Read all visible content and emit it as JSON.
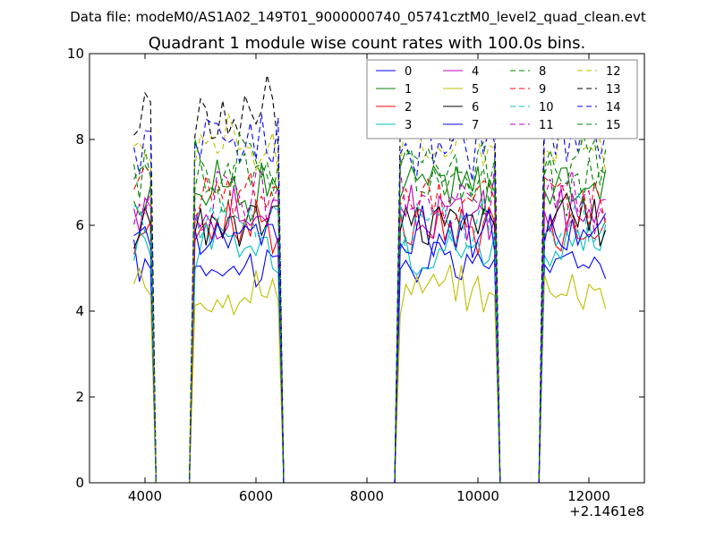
{
  "chart_data": {
    "type": "line",
    "suptitle": "Data file: modeM0/AS1A02_149T01_9000000740_05741cztM0_level2_quad_clean.evt",
    "title": "Quadrant 1 module wise count rates with 100.0s bins.",
    "xlabel": "",
    "ylabel": "",
    "x_offset_label": "+2.1461e8",
    "xlim": [
      3000,
      13000
    ],
    "ylim": [
      0,
      10
    ],
    "x_ticks": [
      4000,
      6000,
      8000,
      10000,
      12000
    ],
    "y_ticks": [
      0,
      2,
      4,
      6,
      8,
      10
    ],
    "x_tick_labels": [
      "4000",
      "6000",
      "8000",
      "10000",
      "12000"
    ],
    "y_tick_labels": [
      "0",
      "2",
      "4",
      "6",
      "8",
      "10"
    ],
    "grid": false,
    "legend_position": "top-right",
    "legend_columns": 4,
    "bin_width": 100,
    "x_start": 3800,
    "x_end": 12300,
    "segments": [
      {
        "start": 3800,
        "end": 4100
      },
      {
        "start": 4900,
        "end": 6400
      },
      {
        "start": 8600,
        "end": 10300
      },
      {
        "start": 11200,
        "end": 12300
      }
    ],
    "series": [
      {
        "name": "0",
        "color": "#0000ff",
        "dashed": false,
        "mean_level": 5.1
      },
      {
        "name": "1",
        "color": "#008000",
        "dashed": false,
        "mean_level": 6.9
      },
      {
        "name": "2",
        "color": "#ff0000",
        "dashed": false,
        "mean_level": 6.0
      },
      {
        "name": "3",
        "color": "#00bfbf",
        "dashed": false,
        "mean_level": 5.5
      },
      {
        "name": "4",
        "color": "#bf00bf",
        "dashed": false,
        "mean_level": 6.2
      },
      {
        "name": "5",
        "color": "#bfbf00",
        "dashed": false,
        "mean_level": 4.5
      },
      {
        "name": "6",
        "color": "#000000",
        "dashed": false,
        "mean_level": 6.1
      },
      {
        "name": "7",
        "color": "#0000ff",
        "dashed": false,
        "mean_level": 5.8
      },
      {
        "name": "8",
        "color": "#008000",
        "dashed": true,
        "mean_level": 7.0
      },
      {
        "name": "9",
        "color": "#ff0000",
        "dashed": true,
        "mean_level": 6.7
      },
      {
        "name": "10",
        "color": "#00bfbf",
        "dashed": true,
        "mean_level": 6.0
      },
      {
        "name": "11",
        "color": "#bf00bf",
        "dashed": true,
        "mean_level": 6.6
      },
      {
        "name": "12",
        "color": "#bfbf00",
        "dashed": true,
        "mean_level": 8.0
      },
      {
        "name": "13",
        "color": "#000000",
        "dashed": true,
        "mean_level": 8.6
      },
      {
        "name": "14",
        "color": "#0000ff",
        "dashed": true,
        "mean_level": 7.9
      },
      {
        "name": "15",
        "color": "#008000",
        "dashed": true,
        "mean_level": 7.4
      }
    ]
  }
}
